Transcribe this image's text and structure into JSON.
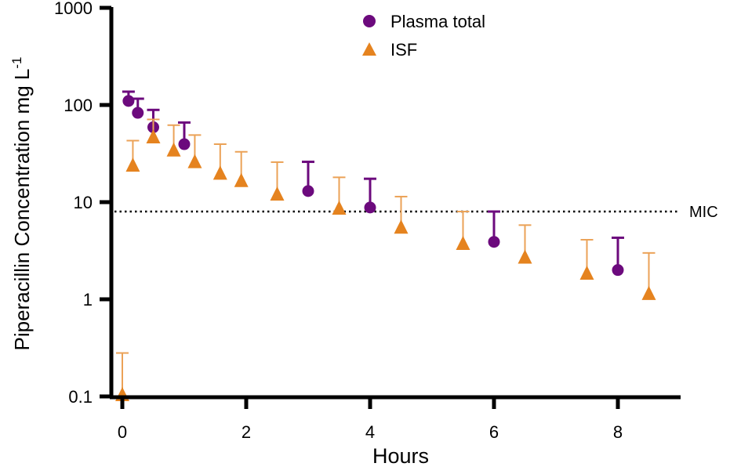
{
  "chart_data": {
    "type": "scatter",
    "title": "",
    "xlabel": "Hours",
    "ylabel": "Piperacillin Concentration mg L",
    "ylabel_superscript": "-1",
    "xlim": [
      -0.2,
      9
    ],
    "ylim": [
      0.1,
      1000
    ],
    "yscale": "log",
    "x_ticks": [
      "0",
      "2",
      "4",
      "6",
      "8"
    ],
    "y_ticks": [
      "1000",
      "100",
      "10",
      "1",
      "0.1"
    ],
    "grid": false,
    "legend_position": "top-center",
    "reference_line": {
      "label": "MIC",
      "value": 8,
      "style": "dotted"
    },
    "series": [
      {
        "name": "Plasma total",
        "marker": "circle",
        "color": "#6c0a7d",
        "x": [
          0.1,
          0.25,
          0.5,
          1,
          3,
          4,
          6,
          8
        ],
        "y": [
          110,
          83,
          59,
          39.5,
          13,
          8.8,
          3.9,
          2.0
        ],
        "error_upper": [
          137,
          116,
          89,
          66,
          26,
          17.4,
          8.0,
          4.3
        ]
      },
      {
        "name": "ISF",
        "marker": "triangle",
        "color": "#e5831f",
        "x": [
          0,
          0.17,
          0.5,
          0.83,
          1.17,
          1.58,
          1.92,
          2.5,
          3.5,
          4.5,
          5.5,
          6.5,
          7.5,
          8.5
        ],
        "y": [
          0.1,
          23,
          45,
          33,
          25,
          19,
          16,
          11.6,
          8.3,
          5.3,
          3.6,
          2.6,
          1.78,
          1.1
        ],
        "error_upper": [
          0.28,
          43,
          71,
          62,
          49,
          39.5,
          33,
          25.8,
          18,
          11.4,
          8.0,
          5.8,
          4.1,
          3.0
        ]
      }
    ]
  }
}
